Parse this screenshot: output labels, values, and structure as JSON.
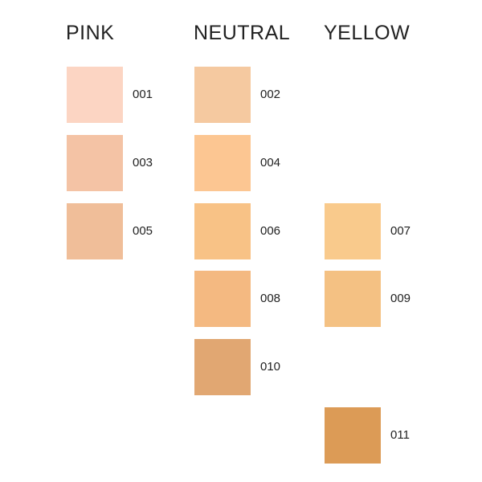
{
  "columns": [
    {
      "title": "PINK",
      "swatches": [
        {
          "code": "001",
          "color": "#fcd5c3"
        },
        {
          "code": "003",
          "color": "#f4c3a5"
        },
        {
          "code": "005",
          "color": "#f0be99"
        }
      ]
    },
    {
      "title": "NEUTRAL",
      "swatches": [
        {
          "code": "002",
          "color": "#f5c9a0"
        },
        {
          "code": "004",
          "color": "#fcc692"
        },
        {
          "code": "006",
          "color": "#f8c286"
        },
        {
          "code": "008",
          "color": "#f4b981"
        },
        {
          "code": "010",
          "color": "#e1a772"
        }
      ]
    },
    {
      "title": "YELLOW",
      "swatches": [
        null,
        null,
        {
          "code": "007",
          "color": "#f9ca8c"
        },
        {
          "code": "009",
          "color": "#f4c183"
        },
        null,
        {
          "code": "011",
          "color": "#dc9b56"
        }
      ]
    }
  ]
}
